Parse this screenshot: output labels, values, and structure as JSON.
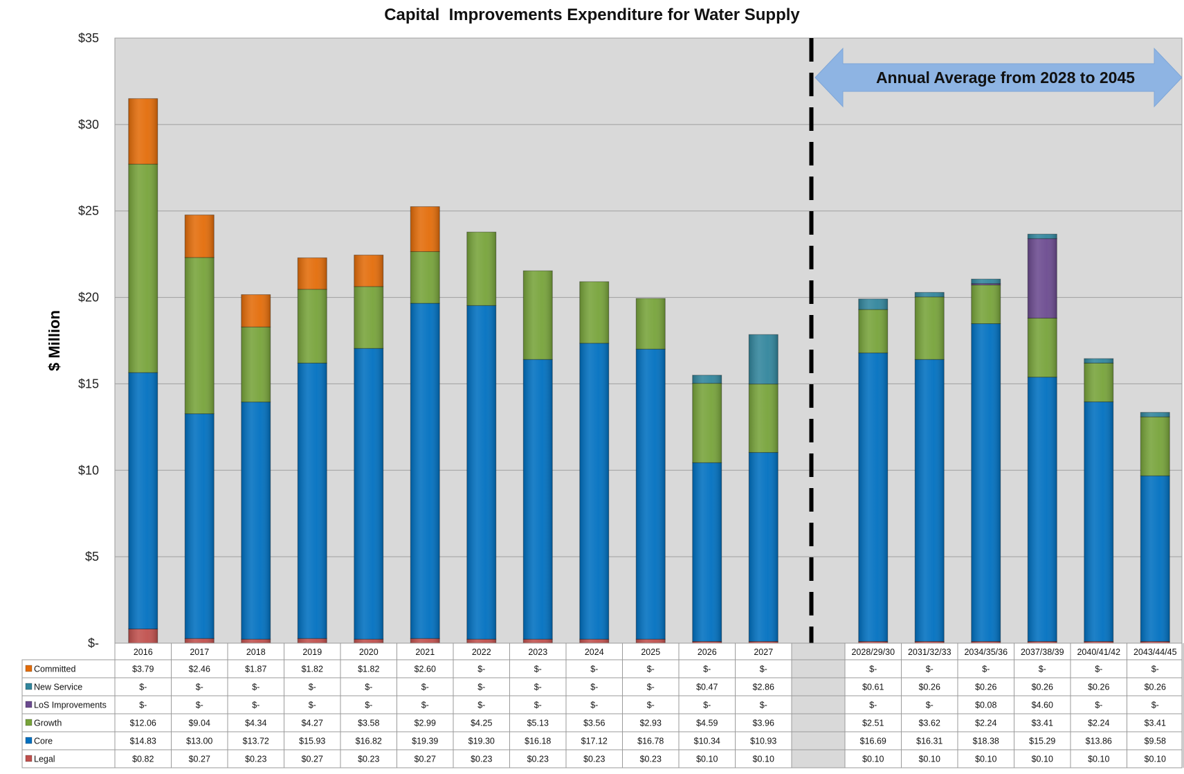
{
  "chart_data": {
    "type": "bar",
    "stacked": true,
    "title": "Capital  Improvements Expenditure for Water Supply",
    "ylabel": "$ Million",
    "ylim": [
      0,
      35
    ],
    "yticks": [
      "$-",
      "$5",
      "$10",
      "$15",
      "$20",
      "$25",
      "$30",
      "$35"
    ],
    "ytick_values": [
      0,
      5,
      10,
      15,
      20,
      25,
      30,
      35
    ],
    "grid": true,
    "legend_placement": "left of data table",
    "annotation": "Annual Average from 2028 to 2045",
    "categories": [
      "2016",
      "2017",
      "2018",
      "2019",
      "2020",
      "2021",
      "2022",
      "2023",
      "2024",
      "2025",
      "2026",
      "2027",
      "2028/29/30",
      "2031/32/33",
      "2034/35/36",
      "2037/38/39",
      "2040/41/42",
      "2043/44/45"
    ],
    "series": [
      {
        "name": "Legal",
        "color": "#c0504d",
        "values": [
          0.82,
          0.27,
          0.23,
          0.27,
          0.23,
          0.27,
          0.23,
          0.23,
          0.23,
          0.23,
          0.1,
          0.1,
          0.1,
          0.1,
          0.1,
          0.1,
          0.1,
          0.1
        ],
        "labels": [
          "$0.82",
          "$0.27",
          "$0.23",
          "$0.27",
          "$0.23",
          "$0.27",
          "$0.23",
          "$0.23",
          "$0.23",
          "$0.23",
          "$0.10",
          "$0.10",
          "$0.10",
          "$0.10",
          "$0.10",
          "$0.10",
          "$0.10",
          "$0.10"
        ]
      },
      {
        "name": "Core",
        "color": "#0070c0",
        "values": [
          14.83,
          13.0,
          13.72,
          15.93,
          16.82,
          19.39,
          19.3,
          16.18,
          17.12,
          16.78,
          10.34,
          10.93,
          16.69,
          16.31,
          18.38,
          15.29,
          13.86,
          9.58
        ],
        "labels": [
          "$14.83",
          "$13.00",
          "$13.72",
          "$15.93",
          "$16.82",
          "$19.39",
          "$19.30",
          "$16.18",
          "$17.12",
          "$16.78",
          "$10.34",
          "$10.93",
          "$16.69",
          "$16.31",
          "$18.38",
          "$15.29",
          "$13.86",
          "$9.58"
        ]
      },
      {
        "name": "Growth",
        "color": "#77a33a",
        "values": [
          12.06,
          9.04,
          4.34,
          4.27,
          3.58,
          2.99,
          4.25,
          5.13,
          3.56,
          2.93,
          4.59,
          3.96,
          2.51,
          3.62,
          2.24,
          3.41,
          2.24,
          3.41
        ],
        "labels": [
          "$12.06",
          "$9.04",
          "$4.34",
          "$4.27",
          "$3.58",
          "$2.99",
          "$4.25",
          "$5.13",
          "$3.56",
          "$2.93",
          "$4.59",
          "$3.96",
          "$2.51",
          "$3.62",
          "$2.24",
          "$3.41",
          "$2.24",
          "$3.41"
        ]
      },
      {
        "name": "LoS Improvements",
        "color": "#6b4a8f",
        "values": [
          0,
          0,
          0,
          0,
          0,
          0,
          0,
          0,
          0,
          0,
          0,
          0,
          0,
          0,
          0.08,
          4.6,
          0,
          0
        ],
        "labels": [
          "$-",
          "$-",
          "$-",
          "$-",
          "$-",
          "$-",
          "$-",
          "$-",
          "$-",
          "$-",
          "$-",
          "$-",
          "$-",
          "$-",
          "$0.08",
          "$4.60",
          "$-",
          "$-"
        ]
      },
      {
        "name": "New Service",
        "color": "#31859c",
        "values": [
          0,
          0,
          0,
          0,
          0,
          0,
          0,
          0,
          0,
          0,
          0.47,
          2.86,
          0.61,
          0.26,
          0.26,
          0.26,
          0.26,
          0.26
        ],
        "labels": [
          "$-",
          "$-",
          "$-",
          "$-",
          "$-",
          "$-",
          "$-",
          "$-",
          "$-",
          "$-",
          "$0.47",
          "$2.86",
          "$0.61",
          "$0.26",
          "$0.26",
          "$0.26",
          "$0.26",
          "$0.26"
        ]
      },
      {
        "name": "Committed",
        "color": "#e36c09",
        "values": [
          3.79,
          2.46,
          1.87,
          1.82,
          1.82,
          2.6,
          0,
          0,
          0,
          0,
          0,
          0,
          0,
          0,
          0,
          0,
          0,
          0
        ],
        "labels": [
          "$3.79",
          "$2.46",
          "$1.87",
          "$1.82",
          "$1.82",
          "$2.60",
          "$-",
          "$-",
          "$-",
          "$-",
          "$-",
          "$-",
          "$-",
          "$-",
          "$-",
          "$-",
          "$-",
          "$-"
        ]
      }
    ],
    "table_row_order": [
      "Committed",
      "New Service",
      "LoS Improvements",
      "Growth",
      "Core",
      "Legal"
    ]
  }
}
